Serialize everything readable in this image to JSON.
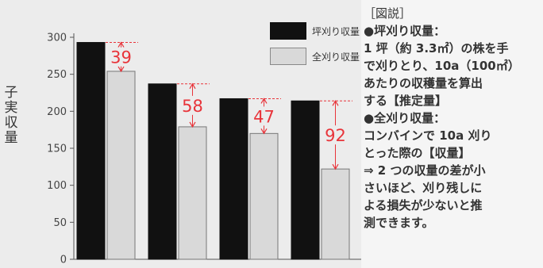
{
  "chart_data": {
    "type": "bar",
    "categories": [
      "",
      "",
      "",
      ""
    ],
    "ylabel": "子実収量",
    "ylim": [
      0,
      300
    ],
    "yticks": [
      0,
      50,
      100,
      150,
      200,
      250,
      300
    ],
    "grid": false,
    "legend_position": "top-right",
    "series": [
      {
        "name": "坪刈り収量",
        "values": [
          293,
          237,
          217,
          214
        ],
        "color": "#111111"
      },
      {
        "name": "全刈り収量",
        "values": [
          254,
          179,
          170,
          122
        ],
        "color": "#d9d9d9"
      }
    ],
    "annotations": [
      {
        "category_index": 0,
        "label": "39"
      },
      {
        "category_index": 1,
        "label": "58"
      },
      {
        "category_index": 2,
        "label": "47"
      },
      {
        "category_index": 3,
        "label": "92"
      }
    ],
    "annotation_color": "#e8343a"
  },
  "caption": {
    "title": "［図説］",
    "lines": [
      "●坪刈り収量：",
      "1 坪（約 3.3㎡）の株を手",
      "で刈りとり、10a（100㎡）",
      "あたりの収穫量を算出",
      "する【推定量】",
      "●全刈り収量：",
      "コンバインで 10a 刈り",
      "とった際の【収量】",
      "⇒ 2 つの収量の差が小",
      "さいほど、刈り残しに",
      "よる損失が少ないと推",
      "測できます。"
    ]
  }
}
